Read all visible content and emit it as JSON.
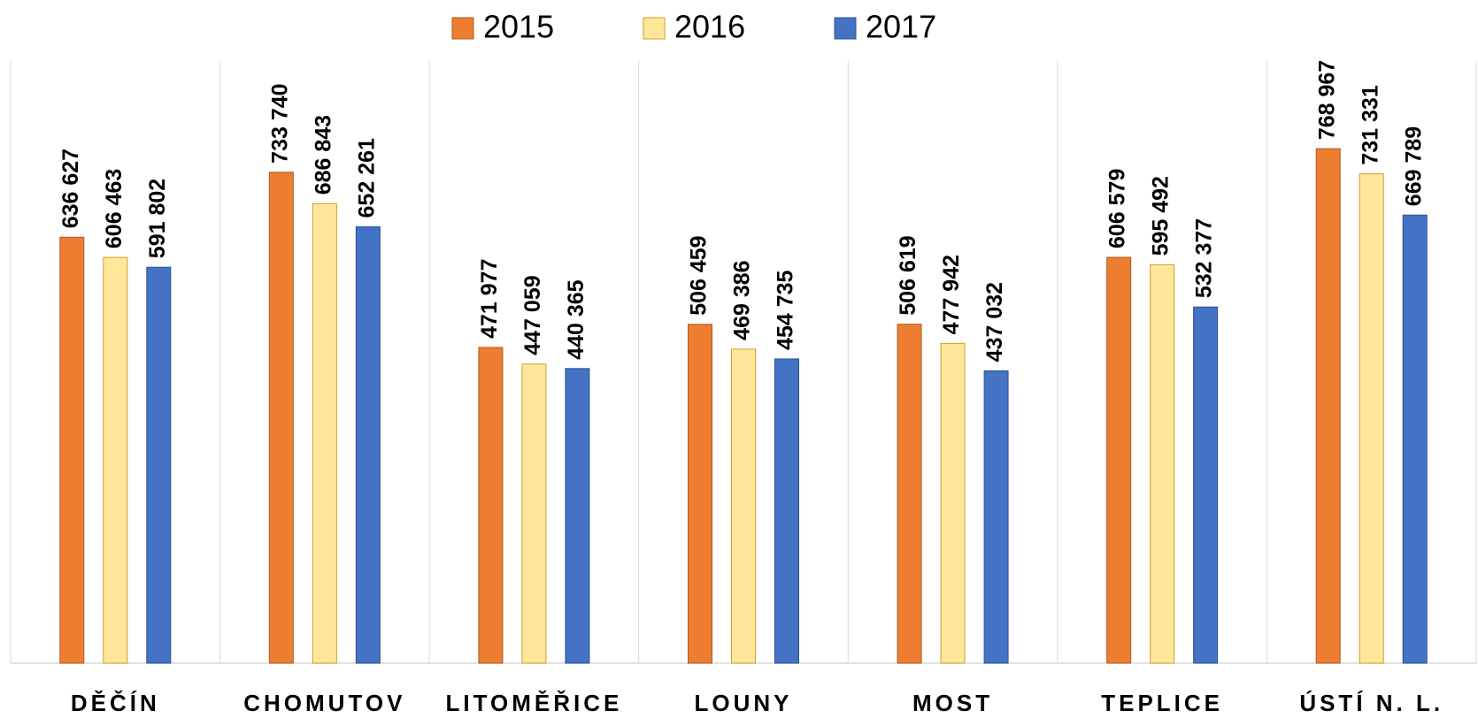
{
  "chart_data": {
    "type": "bar",
    "categories": [
      "DĚČÍN",
      "CHOMUTOV",
      "LITOMĚŘICE",
      "LOUNY",
      "MOST",
      "TEPLICE",
      "ÚSTÍ N. L."
    ],
    "series": [
      {
        "name": "2015",
        "color": "#ed7d31",
        "values": [
          636627,
          733740,
          471977,
          506459,
          506619,
          606579,
          768967
        ],
        "value_labels": [
          "636 627",
          "733 740",
          "471 977",
          "506 459",
          "506 619",
          "606 579",
          "768 967"
        ]
      },
      {
        "name": "2016",
        "color": "#ffe699",
        "values": [
          606463,
          686843,
          447059,
          469386,
          477942,
          595492,
          731331
        ],
        "value_labels": [
          "606 463",
          "686 843",
          "447 059",
          "469 386",
          "477 942",
          "595 492",
          "731 331"
        ]
      },
      {
        "name": "2017",
        "color": "#4472c4",
        "values": [
          591802,
          652261,
          440365,
          454735,
          437032,
          532377,
          669789
        ],
        "value_labels": [
          "591 802",
          "652 261",
          "440 365",
          "454 735",
          "437 032",
          "532 377",
          "669 789"
        ]
      }
    ],
    "ylim": [
      0,
      900000
    ],
    "legend": "top"
  }
}
